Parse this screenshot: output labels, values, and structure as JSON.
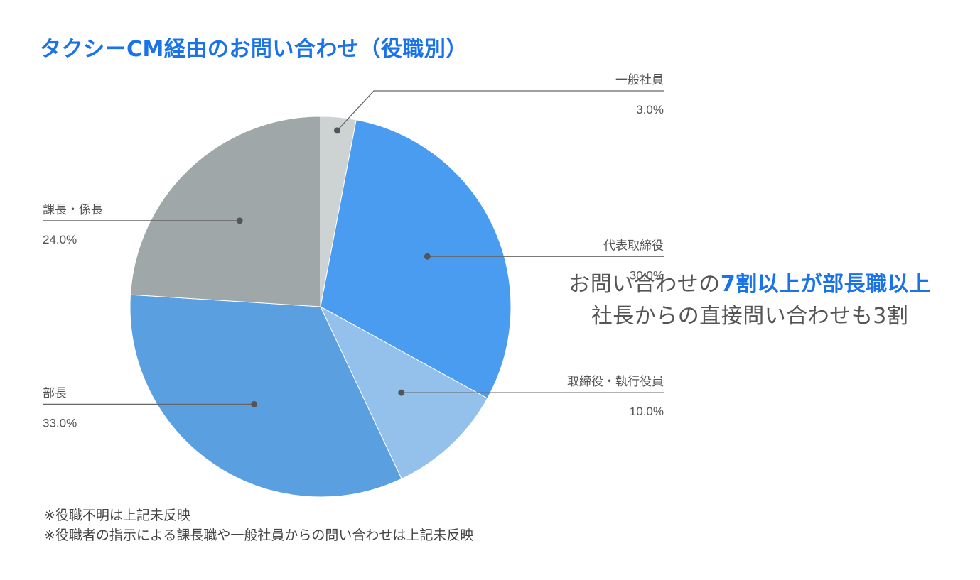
{
  "title": "タクシーCM経由のお問い合わせ（役職別）",
  "callout": {
    "line1_pre": "お問い合わせの",
    "line1_highlight": "7割以上が部長職以上",
    "line2": "社長からの直接問い合わせも3割"
  },
  "notes": [
    "※役職不明は上記未反映",
    "※役職者の指示による課長職や一般社員からの問い合わせは上記未反映"
  ],
  "chart_data": {
    "type": "pie",
    "start": "12 o'clock",
    "direction": "clockwise",
    "slices": [
      {
        "label": "一般社員",
        "value": 3.0,
        "display": "3.0%",
        "color": "#cdd2d3",
        "label_side": "right"
      },
      {
        "label": "代表取締役",
        "value": 30.0,
        "display": "30.0%",
        "color": "#4a9cf1",
        "label_side": "right"
      },
      {
        "label": "取締役・執行役員",
        "value": 10.0,
        "display": "10.0%",
        "color": "#93c1ec",
        "label_side": "right"
      },
      {
        "label": "部長",
        "value": 33.0,
        "display": "33.0%",
        "color": "#5aa0e0",
        "label_side": "left"
      },
      {
        "label": "課長・係長",
        "value": 24.0,
        "display": "24.0%",
        "color": "#a0a7a8",
        "label_side": "left"
      }
    ]
  }
}
